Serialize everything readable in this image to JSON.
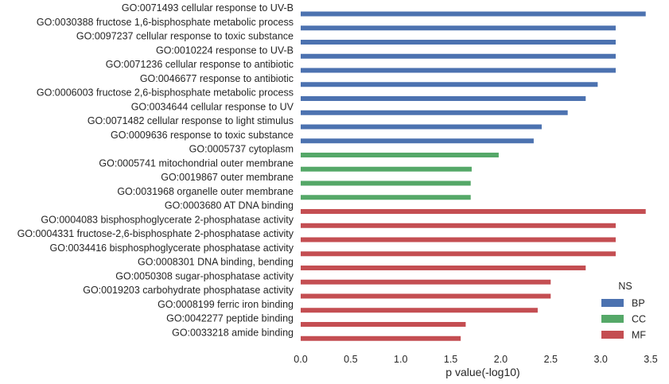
{
  "chart_data": {
    "type": "bar",
    "orientation": "horizontal",
    "title": "",
    "xlabel": "p value(-log10)",
    "ylabel": "",
    "xlim": [
      0,
      3.5
    ],
    "xticks": [
      "0.0",
      "0.5",
      "1.0",
      "1.5",
      "2.0",
      "2.5",
      "3.0",
      "3.5"
    ],
    "grid": false,
    "legend": {
      "title": "NS",
      "placement": "bottom-right",
      "entries": [
        {
          "name": "BP",
          "color": "#4c72b0"
        },
        {
          "name": "CC",
          "color": "#55a868"
        },
        {
          "name": "MF",
          "color": "#c44e52"
        }
      ]
    },
    "bars": [
      {
        "label": "GO:0071493 cellular response to UV-B",
        "value": 3.45,
        "group": "BP"
      },
      {
        "label": "GO:0030388 fructose 1,6-bisphosphate metabolic process",
        "value": 3.15,
        "group": "BP"
      },
      {
        "label": "GO:0097237 cellular response to toxic substance",
        "value": 3.15,
        "group": "BP"
      },
      {
        "label": "GO:0010224 response to UV-B",
        "value": 3.15,
        "group": "BP"
      },
      {
        "label": "GO:0071236 cellular response to antibiotic",
        "value": 3.15,
        "group": "BP"
      },
      {
        "label": "GO:0046677 response to antibiotic",
        "value": 2.97,
        "group": "BP"
      },
      {
        "label": "GO:0006003 fructose 2,6-bisphosphate metabolic process",
        "value": 2.85,
        "group": "BP"
      },
      {
        "label": "GO:0034644 cellular response to UV",
        "value": 2.67,
        "group": "BP"
      },
      {
        "label": "GO:0071482 cellular response to light stimulus",
        "value": 2.41,
        "group": "BP"
      },
      {
        "label": "GO:0009636 response to toxic substance",
        "value": 2.33,
        "group": "BP"
      },
      {
        "label": "GO:0005737 cytoplasm",
        "value": 1.98,
        "group": "CC"
      },
      {
        "label": "GO:0005741 mitochondrial outer membrane",
        "value": 1.71,
        "group": "CC"
      },
      {
        "label": "GO:0019867 outer membrane",
        "value": 1.7,
        "group": "CC"
      },
      {
        "label": "GO:0031968 organelle outer membrane",
        "value": 1.7,
        "group": "CC"
      },
      {
        "label": "GO:0003680 AT DNA binding",
        "value": 3.45,
        "group": "MF"
      },
      {
        "label": "GO:0004083 bisphosphoglycerate 2-phosphatase activity",
        "value": 3.15,
        "group": "MF"
      },
      {
        "label": "GO:0004331 fructose-2,6-bisphosphate 2-phosphatase activity",
        "value": 3.15,
        "group": "MF"
      },
      {
        "label": "GO:0034416 bisphosphoglycerate phosphatase activity",
        "value": 3.15,
        "group": "MF"
      },
      {
        "label": "GO:0008301 DNA binding, bending",
        "value": 2.85,
        "group": "MF"
      },
      {
        "label": "GO:0050308 sugar-phosphatase activity",
        "value": 2.5,
        "group": "MF"
      },
      {
        "label": "GO:0019203 carbohydrate phosphatase activity",
        "value": 2.5,
        "group": "MF"
      },
      {
        "label": "GO:0008199 ferric iron binding",
        "value": 2.37,
        "group": "MF"
      },
      {
        "label": "GO:0042277 peptide binding",
        "value": 1.65,
        "group": "MF"
      },
      {
        "label": "GO:0033218 amide binding",
        "value": 1.6,
        "group": "MF"
      }
    ]
  }
}
